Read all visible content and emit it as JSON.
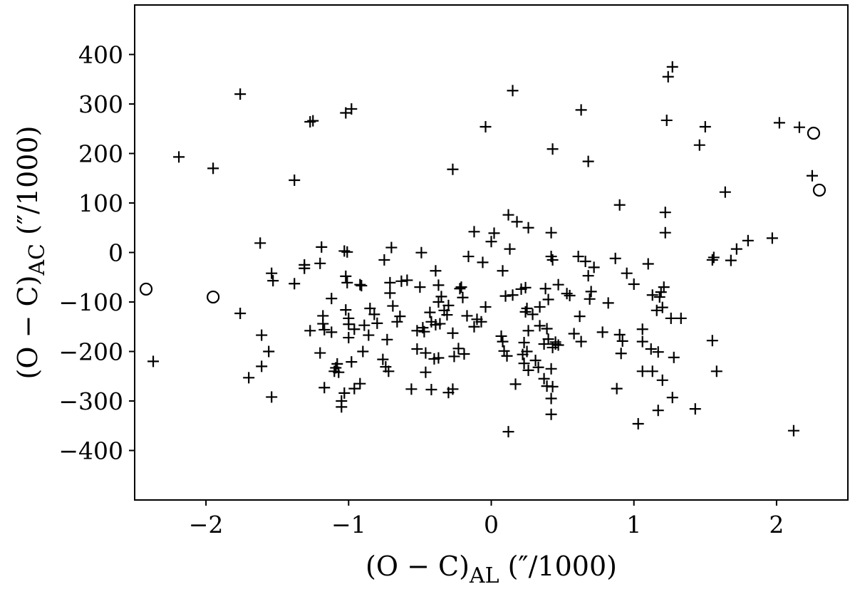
{
  "chart_data": {
    "type": "scatter",
    "xlabel": {
      "main": "(O − C)",
      "sub": "AL",
      "unit": " (″/1000)"
    },
    "ylabel": {
      "main": "(O − C)",
      "sub": "AC",
      "unit": " (″/1000)"
    },
    "xlim": [
      -2.5,
      2.5
    ],
    "ylim": [
      -500,
      500
    ],
    "x_ticks": [
      {
        "value": -2,
        "label": "−2"
      },
      {
        "value": -1,
        "label": "−1"
      },
      {
        "value": 0,
        "label": "0"
      },
      {
        "value": 1,
        "label": "1"
      },
      {
        "value": 2,
        "label": "2"
      }
    ],
    "y_ticks": [
      {
        "value": 400,
        "label": "400"
      },
      {
        "value": 300,
        "label": "300"
      },
      {
        "value": 200,
        "label": "200"
      },
      {
        "value": 100,
        "label": "100"
      },
      {
        "value": 0,
        "label": "0"
      },
      {
        "value": -100,
        "label": "−100"
      },
      {
        "value": -200,
        "label": "−200"
      },
      {
        "value": -300,
        "label": "−300"
      },
      {
        "value": -400,
        "label": "−400"
      }
    ],
    "grid": false,
    "series": [
      {
        "marker": "plus",
        "points": [
          [
            -1.76,
            320
          ],
          [
            -2.19,
            193
          ],
          [
            -1.95,
            170
          ],
          [
            -1.38,
            146
          ],
          [
            -1.27,
            264
          ],
          [
            -1.25,
            266
          ],
          [
            -1.02,
            282
          ],
          [
            -0.98,
            290
          ],
          [
            -0.04,
            254
          ],
          [
            -0.27,
            168
          ],
          [
            0.15,
            327
          ],
          [
            0.63,
            288
          ],
          [
            0.43,
            209
          ],
          [
            0.68,
            184
          ],
          [
            1.23,
            267
          ],
          [
            1.24,
            355
          ],
          [
            1.27,
            375
          ],
          [
            1.5,
            254
          ],
          [
            1.46,
            217
          ],
          [
            2.02,
            262
          ],
          [
            2.16,
            253
          ],
          [
            2.25,
            155
          ],
          [
            1.64,
            122
          ],
          [
            0.9,
            96
          ],
          [
            1.22,
            81
          ],
          [
            1.22,
            40
          ],
          [
            1.8,
            24
          ],
          [
            1.97,
            29
          ],
          [
            1.72,
            7
          ],
          [
            1.68,
            -16
          ],
          [
            1.55,
            -15
          ],
          [
            1.56,
            -10
          ],
          [
            1.55,
            -178
          ],
          [
            1.58,
            -240
          ],
          [
            2.12,
            -360
          ],
          [
            1.43,
            -316
          ],
          [
            1.17,
            -319
          ],
          [
            1.03,
            -346
          ],
          [
            1.27,
            -293
          ],
          [
            1.28,
            -212
          ],
          [
            1.33,
            -133
          ],
          [
            1.26,
            -133
          ],
          [
            1.2,
            -111
          ],
          [
            1.19,
            -80
          ],
          [
            1.21,
            -70
          ],
          [
            1.18,
            -90
          ],
          [
            1.13,
            -86
          ],
          [
            1.1,
            -23
          ],
          [
            1.16,
            -117
          ],
          [
            1.06,
            -155
          ],
          [
            1.06,
            -180
          ],
          [
            1.12,
            -195
          ],
          [
            1.13,
            -240
          ],
          [
            1.2,
            -258
          ],
          [
            1.17,
            -201
          ],
          [
            1.06,
            -240
          ],
          [
            0.88,
            -275
          ],
          [
            0.91,
            -204
          ],
          [
            0.9,
            -166
          ],
          [
            0.92,
            -179
          ],
          [
            0.95,
            -42
          ],
          [
            1.0,
            -64
          ],
          [
            0.87,
            -12
          ],
          [
            0.82,
            -102
          ],
          [
            0.78,
            -161
          ],
          [
            0.69,
            -94
          ],
          [
            0.7,
            -79
          ],
          [
            0.72,
            -30
          ],
          [
            0.68,
            -47
          ],
          [
            0.66,
            -18
          ],
          [
            0.61,
            -8
          ],
          [
            0.58,
            -164
          ],
          [
            0.62,
            -129
          ],
          [
            0.63,
            -180
          ],
          [
            0.55,
            -87
          ],
          [
            0.53,
            -83
          ],
          [
            0.47,
            -65
          ],
          [
            0.43,
            -15
          ],
          [
            0.42,
            -8
          ],
          [
            0.42,
            40
          ],
          [
            0.45,
            -185
          ],
          [
            0.43,
            -192
          ],
          [
            0.47,
            -187
          ],
          [
            0.42,
            -235
          ],
          [
            0.43,
            -271
          ],
          [
            0.42,
            -295
          ],
          [
            0.42,
            -327
          ],
          [
            0.39,
            -270
          ],
          [
            0.37,
            -255
          ],
          [
            0.33,
            -232
          ],
          [
            0.31,
            -218
          ],
          [
            0.26,
            -238
          ],
          [
            0.25,
            -200
          ],
          [
            0.26,
            -158
          ],
          [
            0.29,
            -125
          ],
          [
            0.25,
            -113
          ],
          [
            0.21,
            -74
          ],
          [
            0.24,
            -71
          ],
          [
            0.26,
            50
          ],
          [
            0.18,
            62
          ],
          [
            0.12,
            76
          ],
          [
            0.13,
            7
          ],
          [
            0.08,
            -37
          ],
          [
            0.1,
            -88
          ],
          [
            0.15,
            -86
          ],
          [
            0.11,
            -209
          ],
          [
            0.08,
            -180
          ],
          [
            0.07,
            -169
          ],
          [
            0.09,
            -199
          ],
          [
            0.17,
            -266
          ],
          [
            0.12,
            -362
          ],
          [
            0.34,
            -110
          ],
          [
            0.34,
            -148
          ],
          [
            0.39,
            -154
          ],
          [
            0.37,
            -185
          ],
          [
            0.4,
            -175
          ],
          [
            0.38,
            -73
          ],
          [
            0.4,
            -95
          ],
          [
            0.45,
            -181
          ],
          [
            0.23,
            -182
          ],
          [
            0.23,
            -224
          ],
          [
            0.22,
            -206
          ],
          [
            0.24,
            -120
          ],
          [
            0.0,
            22
          ],
          [
            0.02,
            39
          ],
          [
            -0.12,
            42
          ],
          [
            -0.16,
            -8
          ],
          [
            -0.06,
            -20
          ],
          [
            -0.04,
            -110
          ],
          [
            -0.07,
            -140
          ],
          [
            -0.1,
            -135
          ],
          [
            -0.12,
            -150
          ],
          [
            -0.17,
            -128
          ],
          [
            -0.19,
            -205
          ],
          [
            -0.21,
            -70
          ],
          [
            -0.22,
            -73
          ],
          [
            -0.2,
            -91
          ],
          [
            -0.23,
            -194
          ],
          [
            -0.26,
            -210
          ],
          [
            -0.27,
            -276
          ],
          [
            -0.3,
            -283
          ],
          [
            -0.27,
            -163
          ],
          [
            -0.31,
            -126
          ],
          [
            -0.3,
            -107
          ],
          [
            -0.33,
            -117
          ],
          [
            -0.35,
            -89
          ],
          [
            -0.37,
            -100
          ],
          [
            -0.37,
            -66
          ],
          [
            -0.39,
            -37
          ],
          [
            -0.36,
            -144
          ],
          [
            -0.39,
            -146
          ],
          [
            -0.42,
            -140
          ],
          [
            -0.43,
            -121
          ],
          [
            -0.4,
            -215
          ],
          [
            -0.37,
            -213
          ],
          [
            -0.42,
            -277
          ],
          [
            -0.46,
            -242
          ],
          [
            -0.46,
            -203
          ],
          [
            -0.47,
            -160
          ],
          [
            -0.48,
            -152
          ],
          [
            -0.49,
            -0.3
          ],
          [
            -0.5,
            -70
          ],
          [
            -0.52,
            -158
          ],
          [
            -0.52,
            -195
          ],
          [
            -0.56,
            -276
          ],
          [
            -0.59,
            -56
          ],
          [
            -0.63,
            -58
          ],
          [
            -0.64,
            -129
          ],
          [
            -0.66,
            -140
          ],
          [
            -0.69,
            -108
          ],
          [
            -0.71,
            -82
          ],
          [
            -0.7,
            10
          ],
          [
            -0.71,
            -61
          ],
          [
            -0.73,
            -176
          ],
          [
            -0.72,
            -240
          ],
          [
            -0.74,
            -231
          ],
          [
            -0.76,
            -216
          ],
          [
            -0.75,
            -15
          ],
          [
            -0.8,
            -143
          ],
          [
            -0.82,
            -125
          ],
          [
            -0.85,
            -113
          ],
          [
            -0.86,
            -167
          ],
          [
            -0.89,
            -147
          ],
          [
            -0.91,
            -67
          ],
          [
            -0.92,
            -65
          ],
          [
            -0.9,
            -200
          ],
          [
            -0.92,
            -265
          ],
          [
            -0.96,
            -275
          ],
          [
            -0.96,
            -155
          ],
          [
            -0.98,
            -221
          ],
          [
            -1.0,
            -172
          ],
          [
            -1.0,
            -145
          ],
          [
            -1.0,
            -133
          ],
          [
            -1.02,
            -116
          ],
          [
            -1.01,
            -61
          ],
          [
            -1.02,
            -48
          ],
          [
            -1.03,
            3
          ],
          [
            -1.01,
            1
          ],
          [
            -1.03,
            -284
          ],
          [
            -1.05,
            -300
          ],
          [
            -1.05,
            -312
          ],
          [
            -1.07,
            -242
          ],
          [
            -1.08,
            -225
          ],
          [
            -1.09,
            -233
          ],
          [
            -1.1,
            -240
          ],
          [
            -1.12,
            -93
          ],
          [
            -1.12,
            -161
          ],
          [
            -1.18,
            -144
          ],
          [
            -1.17,
            -156
          ],
          [
            -1.18,
            -128
          ],
          [
            -1.2,
            -203
          ],
          [
            -1.17,
            -273
          ],
          [
            -1.19,
            11
          ],
          [
            -1.2,
            -22
          ],
          [
            -1.31,
            -32
          ],
          [
            -1.31,
            -25
          ],
          [
            -1.38,
            -63
          ],
          [
            -1.53,
            -57
          ],
          [
            -1.54,
            -42
          ],
          [
            -1.27,
            -158
          ],
          [
            -1.62,
            19
          ],
          [
            -1.76,
            -123
          ],
          [
            -1.61,
            -167
          ],
          [
            -1.56,
            -200
          ],
          [
            -1.61,
            -230
          ],
          [
            -1.7,
            -253
          ],
          [
            -1.54,
            -292
          ],
          [
            -2.37,
            -220
          ]
        ]
      },
      {
        "marker": "circle",
        "points": [
          [
            -2.42,
            -74
          ],
          [
            -1.95,
            -90
          ],
          [
            2.26,
            241
          ],
          [
            2.3,
            126
          ]
        ]
      }
    ]
  }
}
